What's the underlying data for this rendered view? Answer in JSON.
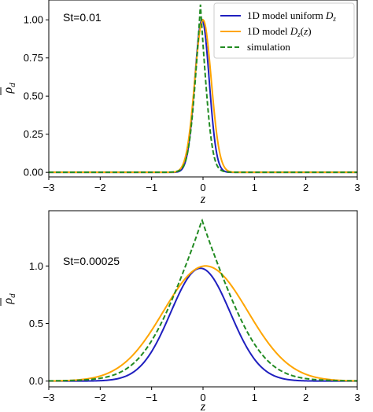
{
  "chart_data": [
    {
      "type": "line",
      "annotation": "St=0.01",
      "xlabel": "z",
      "ylabel": "ρ̄_d",
      "xlim": [
        -3,
        3
      ],
      "ylim": [
        -0.03,
        1.13
      ],
      "xticks": [
        -3,
        -2,
        -1,
        0,
        1,
        2,
        3
      ],
      "xtick_labels": [
        "−3",
        "−2",
        "−1",
        "0",
        "1",
        "2",
        "3"
      ],
      "yticks": [
        0,
        0.25,
        0.5,
        0.75,
        1.0
      ],
      "ytick_labels": [
        "0.00",
        "0.25",
        "0.50",
        "0.75",
        "1.00"
      ],
      "legend_position": "top-right",
      "series": [
        {
          "name": "1D model uniform D_z",
          "color": "#1f1fbf",
          "style": "solid",
          "shape": "gaussian",
          "center": -0.02,
          "sigma": 0.14,
          "peak": 1.0
        },
        {
          "name": "1D model D_z(z)",
          "color": "#ffa500",
          "style": "solid",
          "shape": "gaussian",
          "center": 0.0,
          "sigma": 0.16,
          "peak": 1.0
        },
        {
          "name": "simulation",
          "color": "#228b22",
          "style": "dashed",
          "shape": "cusp",
          "center": -0.05,
          "sigma": 0.13,
          "peak": 1.1
        }
      ]
    },
    {
      "type": "line",
      "annotation": "St=0.00025",
      "xlabel": "z",
      "ylabel": "ρ̄_d",
      "xlim": [
        -3,
        3
      ],
      "ylim": [
        -0.05,
        1.48
      ],
      "xticks": [
        -3,
        -2,
        -1,
        0,
        1,
        2,
        3
      ],
      "xtick_labels": [
        "−3",
        "−2",
        "−1",
        "0",
        "1",
        "2",
        "3"
      ],
      "yticks": [
        0,
        0.5,
        1.0
      ],
      "ytick_labels": [
        "0.0",
        "0.5",
        "1.0"
      ],
      "series": [
        {
          "name": "1D model uniform D_z",
          "color": "#1f1fbf",
          "style": "solid",
          "shape": "gaussian",
          "center": -0.05,
          "sigma": 0.58,
          "peak": 0.98
        },
        {
          "name": "1D model D_z(z)",
          "color": "#ffa500",
          "style": "solid",
          "shape": "gaussian",
          "center": 0.05,
          "sigma": 0.82,
          "peak": 1.0
        },
        {
          "name": "simulation",
          "color": "#228b22",
          "style": "dashed",
          "shape": "cusp",
          "center": -0.02,
          "sigma": 0.68,
          "peak": 1.4
        }
      ]
    }
  ]
}
